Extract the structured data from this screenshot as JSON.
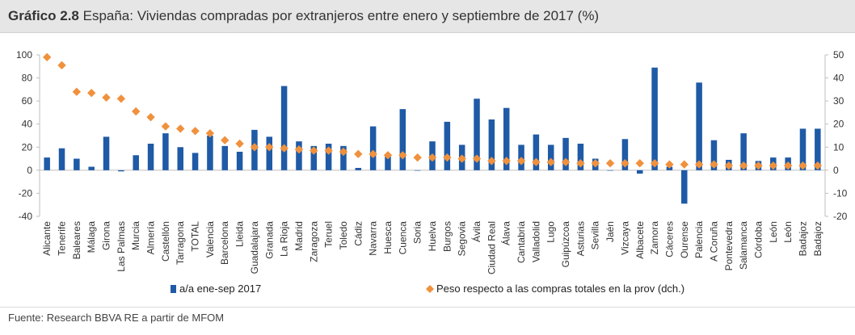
{
  "title": {
    "prefix": "Gráfico 2.8",
    "text": "España: Viviendas compradas por extranjeros entre enero y septiembre de 2017 (%)"
  },
  "source": "Fuente: Research BBVA RE a partir de MFOM",
  "colors": {
    "bar": "#1f5aa6",
    "marker": "#f0913d",
    "axis": "#bfbfbf",
    "title_bg": "#e6e6e6"
  },
  "chart_data": {
    "type": "bar",
    "categories": [
      "Alicante",
      "Tenerife",
      "Baleares",
      "Málaga",
      "Girona",
      "Las Palmas",
      "Murcia",
      "Almería",
      "Castellón",
      "Tarragona",
      "TOTAL",
      "Valencia",
      "Barcelona",
      "Lleida",
      "Guadalajara",
      "Granada",
      "La Rioja",
      "Madrid",
      "Zaragoza",
      "Teruel",
      "Toledo",
      "Cádiz",
      "Navarra",
      "Huesca",
      "Cuenca",
      "Soria",
      "Huelva",
      "Burgos",
      "Segovia",
      "Ávila",
      "Ciudad Real",
      "Álava",
      "Cantabria",
      "Valladolid",
      "Lugo",
      "Guipúzcoa",
      "Asturias",
      "Sevilla",
      "Jaén",
      "Vizcaya",
      "Albacete",
      "Zamora",
      "Cáceres",
      "Ourense",
      "Palencia",
      "A Coruña",
      "Pontevedra",
      "Salamanca",
      "Córdoba",
      "León",
      "León",
      "Badajoz",
      "Badajoz"
    ],
    "series": [
      {
        "name": "a/a ene-sep 2017",
        "axis": "left",
        "kind": "bar",
        "values": [
          11,
          19,
          10,
          3,
          29,
          -1,
          13,
          23,
          32,
          20,
          15,
          30,
          21,
          16,
          35,
          29,
          73,
          25,
          21,
          23,
          21,
          2,
          38,
          12,
          53,
          0,
          25,
          42,
          22,
          62,
          44,
          54,
          22,
          31,
          22,
          28,
          23,
          10,
          0,
          27,
          -3,
          89,
          3,
          -29,
          76,
          26,
          9,
          32,
          8,
          11,
          11,
          36,
          36
        ]
      },
      {
        "name": "Peso respecto a las compras totales en la prov (dch.)",
        "axis": "right",
        "kind": "scatter",
        "values": [
          49,
          45.5,
          34,
          33.5,
          31.5,
          31,
          25.5,
          23,
          19,
          18,
          17,
          16,
          13,
          11.5,
          10,
          10,
          9.5,
          9,
          8.5,
          8.5,
          8,
          7,
          7,
          6.5,
          6.5,
          5.5,
          5.5,
          5.5,
          5,
          5,
          4,
          4,
          4,
          3.5,
          3.5,
          3.5,
          3,
          3,
          3,
          3,
          3,
          3,
          2.5,
          2.5,
          2.5,
          2.5,
          2,
          2,
          2,
          2,
          2,
          2,
          2
        ]
      }
    ],
    "y_left": {
      "lim": [
        -40,
        100
      ],
      "ticks": [
        -40,
        -20,
        0,
        20,
        40,
        60,
        80,
        100
      ]
    },
    "y_right": {
      "lim": [
        -20,
        50
      ],
      "ticks": [
        -20,
        -10,
        0,
        10,
        20,
        30,
        40,
        50
      ]
    },
    "legend": {
      "placement": "bottom"
    }
  }
}
